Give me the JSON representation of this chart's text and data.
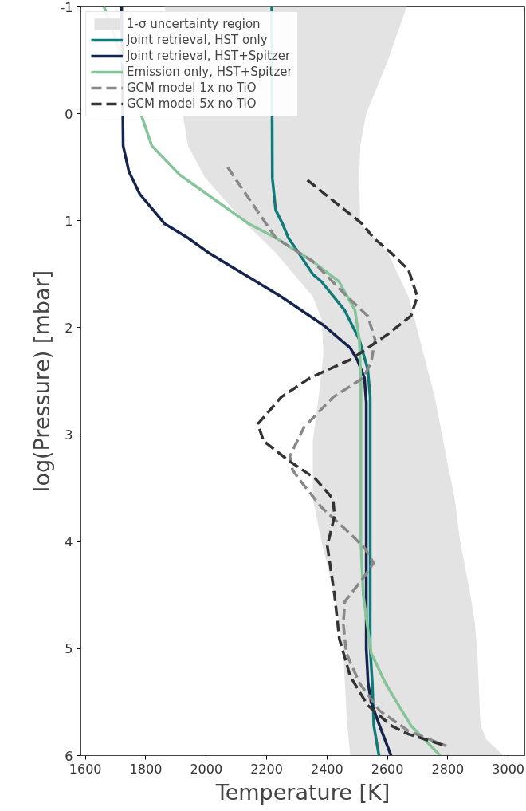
{
  "chart_data": {
    "type": "line",
    "xlabel": "Temperature [K]",
    "ylabel": "log(Pressure) [mbar]",
    "xlim": [
      1585,
      3055
    ],
    "ylim": [
      6,
      -1
    ],
    "xticks": [
      1600,
      1800,
      2000,
      2200,
      2400,
      2600,
      2800,
      3000
    ],
    "yticks": [
      -1,
      0,
      1,
      2,
      3,
      4,
      5,
      6
    ],
    "grid": false,
    "legend": "top left",
    "series": [
      {
        "name": "1-σ uncertainty region",
        "type": "area",
        "color": "#e3e3e3",
        "x": [
          1862,
          1940,
          1997,
          2132,
          2230,
          2353,
          2382,
          2386,
          2388,
          2372,
          2353,
          2353,
          2353,
          2382,
          2425,
          2440,
          2454,
          2464,
          2467,
          2472,
          2477,
          2985,
          2928,
          2909,
          2906,
          2898,
          2890,
          2875,
          2841,
          2823,
          2794,
          2785,
          2757,
          2720,
          2707,
          2690,
          2670,
          2602,
          2510,
          2507,
          2510,
          2530,
          2602,
          2664
        ],
        "values": [
          -1,
          0.3,
          0.6,
          1.03,
          1.3,
          1.71,
          1.92,
          2.11,
          2.25,
          2.65,
          3.06,
          3.2,
          3.6,
          4.0,
          4.5,
          4.77,
          5.04,
          5.58,
          5.72,
          5.85,
          6,
          6,
          5.85,
          5.72,
          5.58,
          5.04,
          4.77,
          4.5,
          4.0,
          3.6,
          3.2,
          3.06,
          2.65,
          2.25,
          2.11,
          1.92,
          1.71,
          1.3,
          1.03,
          0.6,
          0.3,
          0,
          -0.5,
          -1
        ]
      },
      {
        "name": "Joint retrieval, HST only",
        "color": "#107a78",
        "line_style": "solid",
        "x": [
          2217,
          2219,
          2230,
          2253,
          2272,
          2306,
          2353,
          2382,
          2459,
          2507,
          2535,
          2543,
          2543,
          2543,
          2550,
          2555,
          2572
        ],
        "values": [
          -1,
          0.6,
          0.9,
          1.03,
          1.16,
          1.3,
          1.5,
          1.57,
          1.84,
          2.11,
          2.39,
          2.65,
          4.0,
          5.0,
          5.32,
          5.72,
          6
        ]
      },
      {
        "name": "Joint retrieval, HST+Spitzer",
        "color": "#14244c",
        "line_style": "solid",
        "x": [
          1720,
          1725,
          1744,
          1780,
          1863,
          1939,
          2008,
          2248,
          2390,
          2477,
          2500,
          2524,
          2530,
          2530,
          2536,
          2546,
          2574,
          2612
        ],
        "values": [
          -1,
          0.3,
          0.54,
          0.75,
          1.03,
          1.16,
          1.3,
          1.71,
          1.98,
          2.19,
          2.3,
          2.47,
          2.7,
          5.0,
          5.32,
          5.5,
          5.72,
          6
        ]
      },
      {
        "name": "Emission only, HST+Spitzer",
        "color": "#86c49a",
        "line_style": "solid",
        "x": [
          1662,
          1820,
          1912,
          2142,
          2230,
          2353,
          2440,
          2493,
          2507,
          2512,
          2512,
          2520,
          2546,
          2593,
          2678,
          2775
        ],
        "values": [
          -1,
          0.3,
          0.57,
          1.03,
          1.16,
          1.38,
          1.57,
          1.84,
          2.11,
          2.5,
          4.0,
          4.5,
          5.04,
          5.32,
          5.72,
          6
        ]
      },
      {
        "name": "GCM model 1x no TiO",
        "color": "#888888",
        "line_style": "dashed",
        "x": [
          2071,
          2095,
          2230,
          2353,
          2467,
          2535,
          2559,
          2546,
          2519,
          2420,
          2324,
          2277,
          2286,
          2306,
          2382,
          2467,
          2525,
          2554,
          2520,
          2459,
          2454,
          2464,
          2507,
          2574,
          2670,
          2795
        ],
        "values": [
          0.5,
          0.6,
          1.16,
          1.38,
          1.71,
          1.89,
          2.11,
          2.33,
          2.47,
          2.65,
          2.93,
          3.2,
          3.33,
          3.41,
          3.68,
          3.9,
          4.06,
          4.2,
          4.34,
          4.56,
          4.77,
          5.04,
          5.32,
          5.58,
          5.77,
          5.91
        ]
      },
      {
        "name": "GCM model 5x no TiO",
        "color": "#333333",
        "line_style": "dashed",
        "x": [
          2335,
          2517,
          2554,
          2612,
          2670,
          2699,
          2678,
          2602,
          2535,
          2477,
          2343,
          2248,
          2171,
          2190,
          2277,
          2361,
          2420,
          2425,
          2401,
          2425,
          2441,
          2477,
          2535,
          2612,
          2670,
          2795
        ],
        "values": [
          0.62,
          1.03,
          1.16,
          1.3,
          1.46,
          1.71,
          1.89,
          2.06,
          2.19,
          2.3,
          2.47,
          2.65,
          2.9,
          3.06,
          3.25,
          3.41,
          3.6,
          3.76,
          4.04,
          4.5,
          4.91,
          5.26,
          5.53,
          5.72,
          5.8,
          5.91
        ]
      }
    ]
  }
}
